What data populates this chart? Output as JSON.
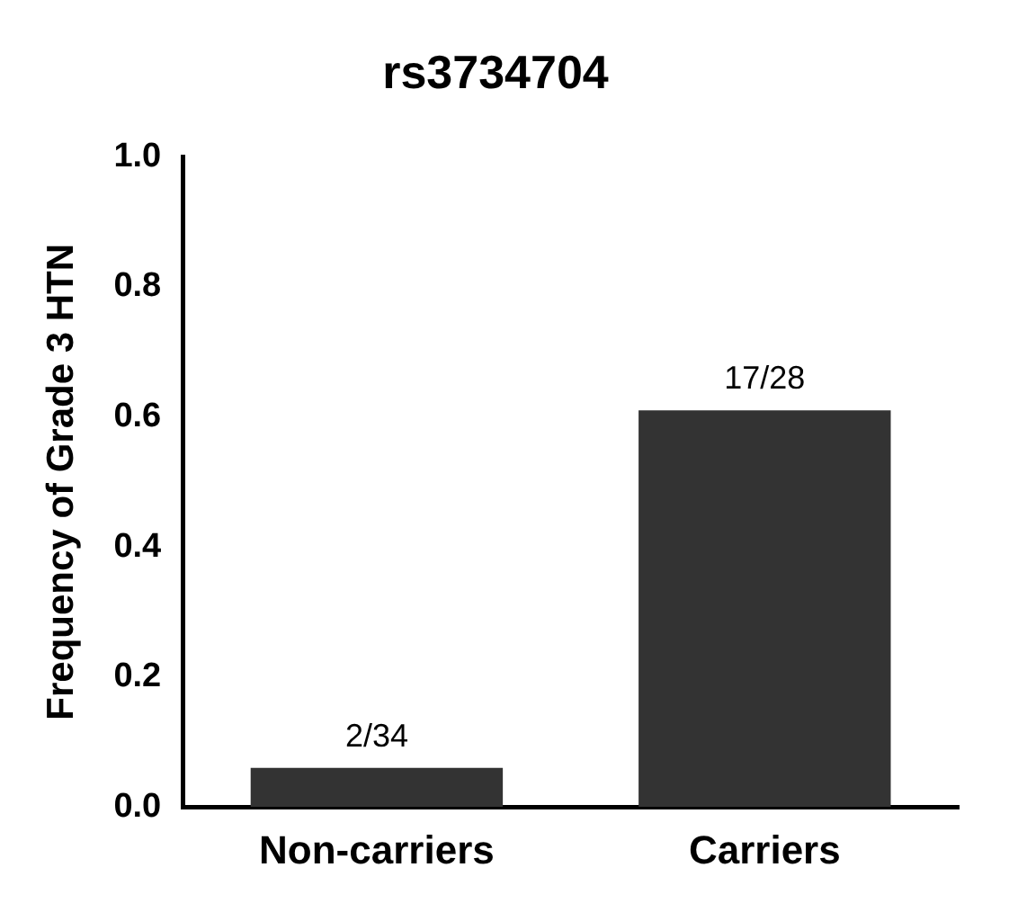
{
  "chart_data": {
    "type": "bar",
    "title": "rs3734704",
    "ylabel": "Frequency of Grade 3 HTN",
    "categories": [
      "Non-carriers",
      "Carriers"
    ],
    "values": [
      0.06,
      0.61
    ],
    "value_labels": [
      "2/34",
      "17/28"
    ],
    "color": "#333333",
    "ylim": [
      0,
      1
    ],
    "yticks": [
      {
        "value": 0,
        "label": "0.0"
      },
      {
        "value": 0.2,
        "label": "0.2"
      },
      {
        "value": 0.4,
        "label": "0.4"
      },
      {
        "value": 0.6,
        "label": "0.6"
      },
      {
        "value": 0.8,
        "label": "0.8"
      },
      {
        "value": 1,
        "label": "1.0"
      }
    ],
    "grid": false,
    "legend": false
  }
}
